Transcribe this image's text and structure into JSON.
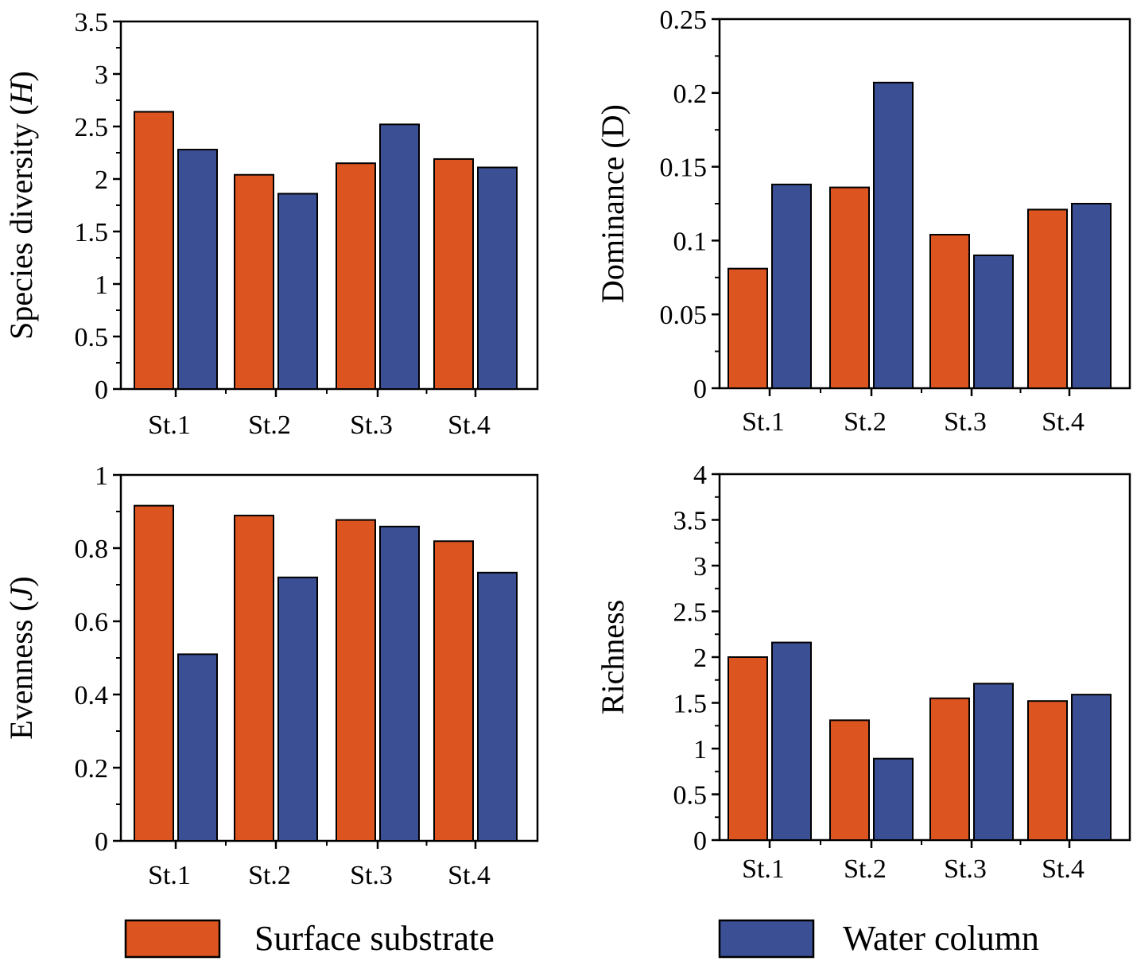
{
  "legend": {
    "items": [
      {
        "label": "Surface substrate",
        "color": "#dc5520"
      },
      {
        "label": "Water column",
        "color": "#3b5094"
      }
    ]
  },
  "chart_data": [
    {
      "type": "bar",
      "ylabel": "Species diversity (H)",
      "categories": [
        "St.1",
        "St.2",
        "St.3",
        "St.4"
      ],
      "series": [
        {
          "name": "Surface substrate",
          "values": [
            2.64,
            2.04,
            2.15,
            2.19
          ]
        },
        {
          "name": "Water column",
          "values": [
            2.28,
            1.86,
            2.52,
            2.11
          ]
        }
      ],
      "ylim": [
        0,
        3.5
      ],
      "yticks": [
        "0",
        "0.5",
        "1",
        "1.5",
        "2",
        "2.5",
        "3",
        "3.5"
      ]
    },
    {
      "type": "bar",
      "ylabel": "Dominance (D)",
      "categories": [
        "St.1",
        "St.2",
        "St.3",
        "St.4"
      ],
      "series": [
        {
          "name": "Surface substrate",
          "values": [
            0.081,
            0.136,
            0.104,
            0.121
          ]
        },
        {
          "name": "Water column",
          "values": [
            0.138,
            0.207,
            0.09,
            0.125
          ]
        }
      ],
      "ylim": [
        0,
        0.25
      ],
      "yticks": [
        "0",
        "0.05",
        "0.1",
        "0.15",
        "0.2",
        "0.25"
      ]
    },
    {
      "type": "bar",
      "ylabel": "Evenness (J)",
      "categories": [
        "St.1",
        "St.2",
        "St.3",
        "St.4"
      ],
      "series": [
        {
          "name": "Surface substrate",
          "values": [
            0.916,
            0.889,
            0.877,
            0.819
          ]
        },
        {
          "name": "Water column",
          "values": [
            0.51,
            0.72,
            0.859,
            0.733
          ]
        }
      ],
      "ylim": [
        0,
        1
      ],
      "yticks": [
        "0",
        "0.2",
        "0.4",
        "0.6",
        "0.8",
        "1"
      ]
    },
    {
      "type": "bar",
      "ylabel": "Richness",
      "categories": [
        "St.1",
        "St.2",
        "St.3",
        "St.4"
      ],
      "series": [
        {
          "name": "Surface substrate",
          "values": [
            2.0,
            1.31,
            1.55,
            1.52
          ]
        },
        {
          "name": "Water column",
          "values": [
            2.16,
            0.89,
            1.71,
            1.59
          ]
        }
      ],
      "ylim": [
        0,
        4
      ],
      "yticks": [
        "0",
        "0.5",
        "1",
        "1.5",
        "2",
        "2.5",
        "3",
        "3.5",
        "4"
      ]
    }
  ]
}
